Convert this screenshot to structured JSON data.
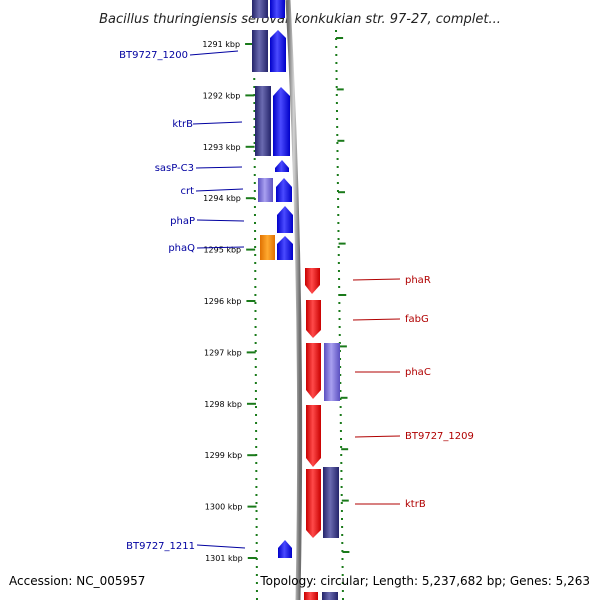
{
  "map": {
    "title": "Bacillus thuringiensis serovar konkukian str. 97-27, complet...",
    "footer_accession": "Accession: NC_005957",
    "footer_stats": "Topology: circular; Length: 5,237,682 bp; Genes: 5,263",
    "scale_ticks": [
      {
        "label": "1291 kbp",
        "kbp": 1291
      },
      {
        "label": "1292 kbp",
        "kbp": 1292
      },
      {
        "label": "1293 kbp",
        "kbp": 1293
      },
      {
        "label": "1294 kbp",
        "kbp": 1294
      },
      {
        "label": "1295 kbp",
        "kbp": 1295
      },
      {
        "label": "1296 kbp",
        "kbp": 1296
      },
      {
        "label": "1297 kbp",
        "kbp": 1297
      },
      {
        "label": "1298 kbp",
        "kbp": 1298
      },
      {
        "label": "1299 kbp",
        "kbp": 1299
      },
      {
        "label": "1300 kbp",
        "kbp": 1300
      },
      {
        "label": "1301 kbp",
        "kbp": 1301
      }
    ],
    "genes_reverse_labels": [
      "BT9727_1200",
      "ktrB",
      "sasP-C3",
      "crt",
      "phaP",
      "phaQ",
      "BT9727_1211"
    ],
    "genes_forward_labels": [
      "phaR",
      "fabG",
      "phaC",
      "BT9727_1209",
      "ktrB"
    ],
    "colors": {
      "reverse_strand": "#1010ee",
      "forward_strand": "#ee0000",
      "similarity_dark": "#3a3a80",
      "similarity_light": "#7b6fd0",
      "similarity_orange": "#ff8c00",
      "ticks": "#1a7a1a",
      "backbone": "#999999",
      "left_label_color": "#0000a0",
      "right_label_color": "#b00000"
    }
  }
}
